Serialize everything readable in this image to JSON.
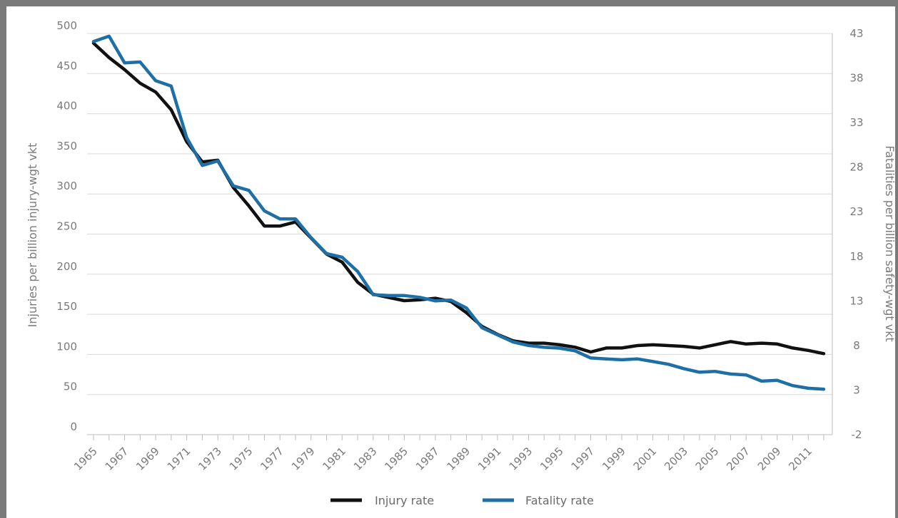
{
  "chart_data": {
    "type": "line",
    "xlabel": "",
    "ylabel": "Injuries per billion injury-wgt vkt",
    "y2label": "Fatalities per billion safety-wgt vkt",
    "ylim": [
      0,
      500
    ],
    "y2lim": [
      -2,
      43
    ],
    "yticks": [
      "0",
      "50",
      "100",
      "150",
      "200",
      "250",
      "300",
      "350",
      "400",
      "450",
      "500"
    ],
    "y2ticks": [
      "-2",
      "3",
      "8",
      "13",
      "18",
      "23",
      "28",
      "33",
      "38",
      "43"
    ],
    "xticks": [
      "1965",
      "1967",
      "1969",
      "1971",
      "1973",
      "1975",
      "1977",
      "1979",
      "1981",
      "1983",
      "1985",
      "1987",
      "1989",
      "1991",
      "1993",
      "1995",
      "1997",
      "1999",
      "2001",
      "2003",
      "2005",
      "2007",
      "2009",
      "2011"
    ],
    "x": [
      1965,
      1966,
      1967,
      1968,
      1969,
      1970,
      1971,
      1972,
      1973,
      1974,
      1975,
      1976,
      1977,
      1978,
      1979,
      1980,
      1981,
      1982,
      1983,
      1984,
      1985,
      1986,
      1987,
      1988,
      1989,
      1990,
      1991,
      1992,
      1993,
      1994,
      1995,
      1996,
      1997,
      1998,
      1999,
      2000,
      2001,
      2002,
      2003,
      2004,
      2005,
      2006,
      2007,
      2008,
      2009,
      2010,
      2011,
      2012
    ],
    "grid": true,
    "legend_position": "bottom",
    "series": [
      {
        "name": "Injury rate",
        "color": "#111111",
        "axis": "left",
        "values": [
          488,
          470,
          455,
          438,
          427,
          405,
          365,
          340,
          342,
          308,
          285,
          260,
          260,
          265,
          245,
          225,
          215,
          190,
          175,
          171,
          167,
          168,
          170,
          166,
          152,
          135,
          125,
          117,
          114,
          114,
          112,
          109,
          103,
          108,
          108,
          111,
          112,
          111,
          110,
          108,
          112,
          116,
          113,
          114,
          113,
          108,
          105,
          101
        ]
      },
      {
        "name": "Fatality rate",
        "color": "#1d6fa5",
        "axis": "right",
        "values": [
          42.1,
          42.7,
          39.7,
          39.8,
          37.7,
          37.1,
          31.3,
          28.2,
          28.7,
          25.9,
          25.4,
          23.1,
          22.2,
          22.2,
          20.1,
          18.3,
          17.9,
          16.3,
          13.7,
          13.6,
          13.6,
          13.4,
          13.0,
          13.1,
          12.2,
          10.0,
          9.2,
          8.4,
          8.0,
          7.8,
          7.7,
          7.4,
          6.6,
          6.5,
          6.4,
          6.5,
          6.2,
          5.9,
          5.4,
          5.0,
          5.1,
          4.8,
          4.7,
          4.0,
          4.1,
          3.5,
          3.2,
          3.1
        ]
      }
    ]
  }
}
